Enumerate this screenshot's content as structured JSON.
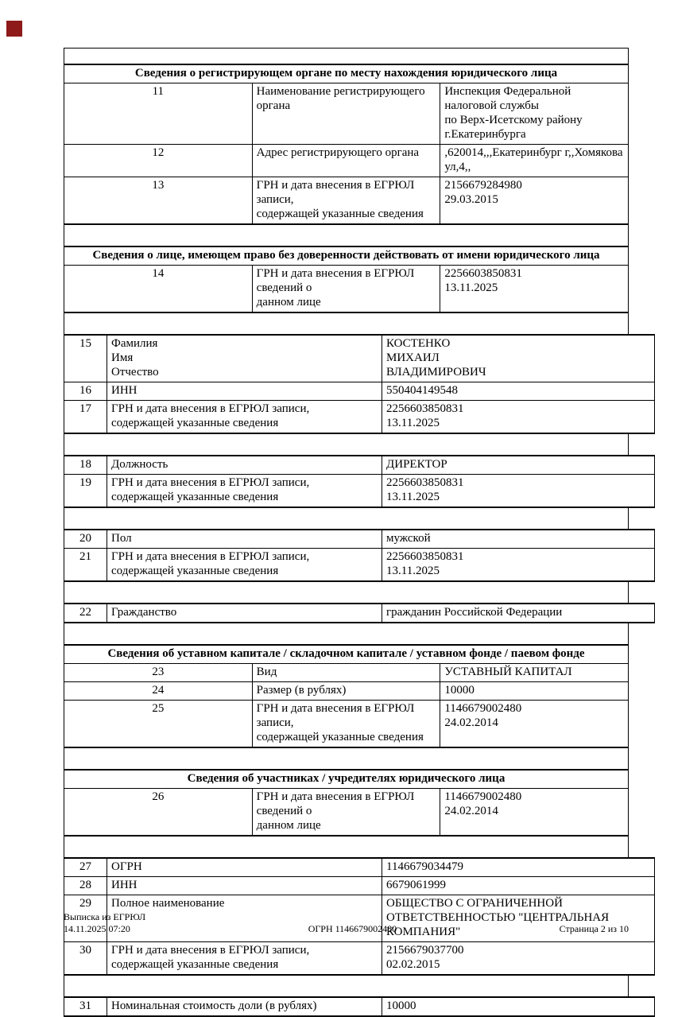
{
  "marker": {
    "color": "#8e1a1a"
  },
  "colors": {
    "border": "#000000",
    "text": "#000000",
    "background": "#ffffff"
  },
  "table": {
    "blocks": [
      {
        "type": "spacer",
        "variant": "top"
      },
      {
        "type": "header",
        "text": "Сведения о регистрирующем органе по месту нахождения юридического лица"
      },
      {
        "type": "row",
        "num": "11",
        "label": "Наименование регистрирующего органа",
        "value": "Инспекция Федеральной налоговой службы\nпо Верх-Исетскому району г.Екатеринбурга"
      },
      {
        "type": "row",
        "num": "12",
        "label": "Адрес регистрирующего органа",
        "value": ",620014,,,Екатеринбург г,,Хомякова ул,4,,"
      },
      {
        "type": "row",
        "num": "13",
        "label": "ГРН и дата внесения в ЕГРЮЛ записи,\nсодержащей указанные сведения",
        "value": "2156679284980\n29.03.2015"
      },
      {
        "type": "spacer"
      },
      {
        "type": "header",
        "text": "Сведения о лице, имеющем право без доверенности действовать от имени юридического лица"
      },
      {
        "type": "row",
        "num": "14",
        "label": "ГРН и дата внесения в ЕГРЮЛ сведений о\nданном лице",
        "value": "2256603850831\n13.11.2025"
      },
      {
        "type": "spacer"
      },
      {
        "type": "row",
        "num": "15",
        "label": "Фамилия\nИмя\nОтчество",
        "value": "КОСТЕНКО\nМИХАИЛ\nВЛАДИМИРОВИЧ"
      },
      {
        "type": "row",
        "num": "16",
        "label": "ИНН",
        "value": "550404149548"
      },
      {
        "type": "row",
        "num": "17",
        "label": "ГРН и дата внесения в ЕГРЮЛ записи,\nсодержащей указанные сведения",
        "value": "2256603850831\n13.11.2025"
      },
      {
        "type": "spacer"
      },
      {
        "type": "row",
        "num": "18",
        "label": "Должность",
        "value": "ДИРЕКТОР"
      },
      {
        "type": "row",
        "num": "19",
        "label": "ГРН и дата внесения в ЕГРЮЛ записи,\nсодержащей указанные сведения",
        "value": "2256603850831\n13.11.2025"
      },
      {
        "type": "spacer"
      },
      {
        "type": "row",
        "num": "20",
        "label": "Пол",
        "value": "мужской"
      },
      {
        "type": "row",
        "num": "21",
        "label": "ГРН и дата внесения в ЕГРЮЛ записи,\nсодержащей указанные сведения",
        "value": "2256603850831\n13.11.2025"
      },
      {
        "type": "spacer"
      },
      {
        "type": "row",
        "num": "22",
        "label": "Гражданство",
        "value": "гражданин Российской Федерации"
      },
      {
        "type": "spacer"
      },
      {
        "type": "header",
        "text": "Сведения об уставном капитале / складочном капитале / уставном фонде / паевом фонде"
      },
      {
        "type": "row",
        "num": "23",
        "label": "Вид",
        "value": "УСТАВНЫЙ КАПИТАЛ"
      },
      {
        "type": "row",
        "num": "24",
        "label": "Размер (в рублях)",
        "value": "10000"
      },
      {
        "type": "row",
        "num": "25",
        "label": "ГРН и дата внесения в ЕГРЮЛ записи,\nсодержащей указанные сведения",
        "value": "1146679002480\n24.02.2014"
      },
      {
        "type": "spacer"
      },
      {
        "type": "header",
        "text": "Сведения об участниках / учредителях юридического лица"
      },
      {
        "type": "row",
        "num": "26",
        "label": "ГРН и дата внесения в ЕГРЮЛ сведений о\nданном лице",
        "value": "1146679002480\n24.02.2014"
      },
      {
        "type": "spacer"
      },
      {
        "type": "row",
        "num": "27",
        "label": "ОГРН",
        "value": "1146679034479"
      },
      {
        "type": "row",
        "num": "28",
        "label": "ИНН",
        "value": "6679061999"
      },
      {
        "type": "row",
        "num": "29",
        "label": "Полное наименование",
        "value": "ОБЩЕСТВО С ОГРАНИЧЕННОЙ\nОТВЕТСТВЕННОСТЬЮ \"ЦЕНТРАЛЬНАЯ\nКОМПАНИЯ\""
      },
      {
        "type": "row",
        "num": "30",
        "label": "ГРН и дата внесения в ЕГРЮЛ записи,\nсодержащей указанные сведения",
        "value": "2156679037700\n02.02.2015"
      },
      {
        "type": "spacer"
      },
      {
        "type": "row",
        "num": "31",
        "label": "Номинальная стоимость доли (в рублях)",
        "value": "10000"
      }
    ]
  },
  "footer": {
    "doc_title": "Выписка из ЕГРЮЛ",
    "datetime": "14.11.2025 07:20",
    "ogrn": "ОГРН 1146679002480",
    "page": "Страница 2 из 10"
  }
}
